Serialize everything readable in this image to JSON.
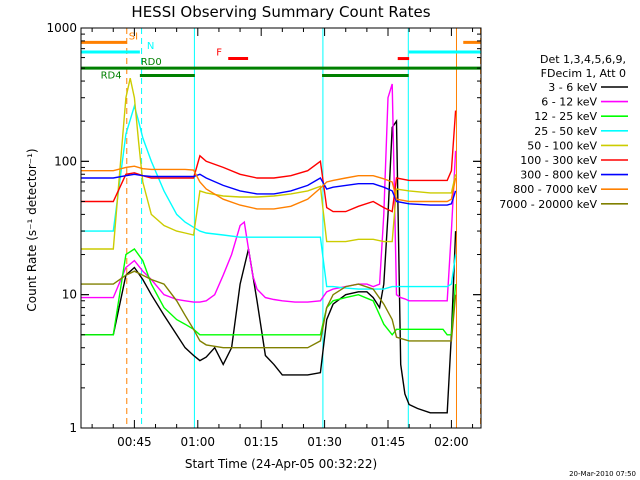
{
  "chart_data": {
    "type": "line",
    "title": "HESSI Observing Summary Count Rates",
    "xlabel": "Start Time (24-Apr-05 00:32:22)",
    "ylabel": "Count Rate (s⁻¹ detector⁻¹)",
    "y_scale": "log",
    "ylim": [
      1,
      1000
    ],
    "xlim": [
      32.37,
      127.0
    ],
    "x_unit": "minutes after 00:00 UT, 24-Apr-05",
    "x_ticks": [
      {
        "value": 45,
        "label": "00:45"
      },
      {
        "value": 60,
        "label": "01:00"
      },
      {
        "value": 75,
        "label": "01:15"
      },
      {
        "value": 90,
        "label": "01:30"
      },
      {
        "value": 105,
        "label": "01:45"
      },
      {
        "value": 120,
        "label": "02:00"
      }
    ],
    "y_ticks": [
      {
        "value": 1,
        "label": "1"
      },
      {
        "value": 10,
        "label": "10"
      },
      {
        "value": 100,
        "label": "100"
      },
      {
        "value": 1000,
        "label": "1000"
      }
    ],
    "legend_header": [
      "Det 1,3,4,5,6,9,",
      "FDecim 1, Att 0"
    ],
    "legend_position": "right",
    "footer_date": "20-Mar-2010 07:50",
    "series": [
      {
        "name": "3 - 6 keV",
        "color": "#000000",
        "x": [
          32.4,
          40,
          43,
          45,
          47,
          49,
          52,
          55,
          57,
          59,
          60.5,
          62,
          64,
          66,
          68,
          70,
          72,
          74,
          76,
          78,
          80,
          83,
          86,
          89,
          90.5,
          92,
          95,
          98,
          100,
          101.5,
          103,
          104,
          105,
          106,
          107,
          108,
          109,
          110,
          112,
          115,
          118,
          119,
          120,
          121
        ],
        "y": [
          5,
          5,
          14,
          16,
          13,
          10,
          7,
          5,
          4,
          3.5,
          3.2,
          3.4,
          4,
          3,
          4,
          12,
          22,
          9,
          3.5,
          3,
          2.5,
          2.5,
          2.5,
          2.6,
          6.5,
          8.5,
          10,
          10.5,
          10.5,
          9.5,
          8,
          12,
          40,
          180,
          200,
          3,
          1.8,
          1.5,
          1.4,
          1.3,
          1.3,
          1.3,
          5,
          30
        ]
      },
      {
        "name": "6 - 12 keV",
        "color": "#ff00ff",
        "x": [
          32.4,
          40,
          43,
          45,
          47,
          49,
          52,
          55,
          57,
          59,
          60.5,
          62,
          64,
          66,
          68,
          70,
          71,
          72,
          73,
          74,
          76,
          78,
          80,
          83,
          86,
          89,
          90.5,
          92,
          95,
          98,
          100,
          101.5,
          103,
          104,
          105,
          106,
          107,
          108,
          109,
          110,
          112,
          115,
          118,
          119,
          120,
          121
        ],
        "y": [
          9.5,
          9.5,
          16,
          18,
          15,
          13,
          10,
          9.2,
          9,
          8.8,
          8.8,
          9,
          10,
          14,
          20,
          33,
          35,
          22,
          14,
          11,
          9.5,
          9.2,
          9,
          8.8,
          8.8,
          9,
          10.5,
          11,
          11.5,
          12,
          12,
          11.5,
          12,
          40,
          300,
          380,
          10,
          9.5,
          9.3,
          9,
          9,
          9,
          9,
          9,
          30,
          120
        ]
      },
      {
        "name": "12 - 25 keV",
        "color": "#00ff00",
        "x": [
          32.4,
          40,
          43,
          45,
          47,
          49,
          52,
          55,
          57,
          59,
          60.5,
          62,
          66,
          70,
          74,
          78,
          82,
          86,
          89,
          90.5,
          92,
          95,
          98,
          101.5,
          104,
          106,
          107,
          110,
          115,
          118,
          119,
          120,
          121
        ],
        "y": [
          5,
          5,
          20,
          22,
          18,
          12,
          8,
          6.5,
          6,
          5.5,
          5,
          5,
          5,
          5,
          5,
          5,
          5,
          5,
          5,
          8,
          9,
          9.5,
          10,
          9,
          6,
          5,
          5.5,
          5.5,
          5.5,
          5.5,
          5,
          5,
          12
        ]
      },
      {
        "name": "25 - 50 keV",
        "color": "#00ffff",
        "x": [
          32.4,
          40,
          43,
          45,
          46,
          47,
          49,
          52,
          55,
          57,
          59,
          60.5,
          62,
          66,
          70,
          74,
          78,
          82,
          86,
          89,
          90.5,
          92,
          95,
          98,
          101.5,
          104,
          106,
          107,
          110,
          115,
          118,
          119,
          120,
          121
        ],
        "y": [
          30,
          30,
          160,
          260,
          200,
          150,
          100,
          60,
          40,
          35,
          32,
          30,
          29,
          28,
          27,
          27,
          27,
          27,
          27,
          27,
          11.5,
          11.5,
          11.2,
          11,
          11,
          11,
          11.5,
          11.5,
          11.5,
          11.5,
          11.5,
          11.5,
          12,
          20
        ]
      },
      {
        "name": "50 - 100 keV",
        "color": "#cccc00",
        "x": [
          32.4,
          40,
          43,
          44,
          45,
          46,
          47,
          49,
          52,
          55,
          57,
          59,
          60.5,
          62,
          66,
          70,
          74,
          78,
          82,
          86,
          89,
          90.5,
          92,
          95,
          98,
          101.5,
          104,
          106,
          107,
          110,
          115,
          118,
          119,
          120,
          121
        ],
        "y": [
          22,
          22,
          300,
          420,
          300,
          140,
          70,
          40,
          33,
          30,
          29,
          28,
          60,
          58,
          55,
          54,
          54,
          55,
          57,
          60,
          65,
          25,
          25,
          25,
          26,
          26,
          25,
          25,
          62,
          60,
          58,
          58,
          58,
          58,
          80
        ]
      },
      {
        "name": "100 - 300 keV",
        "color": "#ff0000",
        "x": [
          32.4,
          40,
          43,
          45,
          47,
          49,
          52,
          55,
          57,
          59,
          60.5,
          62,
          66,
          70,
          74,
          78,
          82,
          86,
          89,
          90.5,
          92,
          95,
          98,
          101.5,
          104,
          106,
          107,
          110,
          115,
          118,
          119,
          120,
          121
        ],
        "y": [
          50,
          50,
          80,
          82,
          78,
          75,
          75,
          75,
          75,
          75,
          110,
          100,
          90,
          80,
          75,
          75,
          78,
          85,
          100,
          45,
          42,
          42,
          46,
          50,
          45,
          42,
          75,
          72,
          72,
          72,
          72,
          85,
          240
        ]
      },
      {
        "name": "300 - 800 keV",
        "color": "#0000ff",
        "x": [
          32.4,
          40,
          43,
          45,
          47,
          49,
          52,
          55,
          57,
          59,
          60.5,
          62,
          66,
          70,
          74,
          78,
          82,
          86,
          89,
          90.5,
          92,
          95,
          98,
          101.5,
          104,
          106,
          107,
          110,
          115,
          118,
          119,
          120,
          121
        ],
        "y": [
          75,
          75,
          78,
          80,
          78,
          77,
          77,
          77,
          77,
          77,
          80,
          75,
          66,
          60,
          57,
          57,
          60,
          66,
          75,
          62,
          64,
          66,
          68,
          68,
          64,
          60,
          50,
          48,
          47,
          47,
          47,
          48,
          60
        ]
      },
      {
        "name": "800 - 7000 keV",
        "color": "#ff8000",
        "x": [
          32.4,
          40,
          43,
          45,
          47,
          49,
          52,
          55,
          57,
          59,
          60.5,
          62,
          66,
          70,
          74,
          78,
          82,
          86,
          89,
          90.5,
          92,
          95,
          98,
          101.5,
          104,
          106,
          107,
          110,
          115,
          118,
          119,
          120,
          121
        ],
        "y": [
          85,
          85,
          90,
          92,
          88,
          87,
          87,
          87,
          87,
          86,
          70,
          62,
          52,
          47,
          44,
          44,
          46,
          52,
          63,
          70,
          72,
          75,
          78,
          78,
          74,
          70,
          52,
          50,
          50,
          50,
          50,
          52,
          75
        ]
      },
      {
        "name": "7000 - 20000 keV",
        "color": "#808000",
        "x": [
          32.4,
          40,
          43,
          45,
          47,
          49,
          52,
          55,
          57,
          59,
          60.5,
          62,
          66,
          70,
          74,
          78,
          82,
          86,
          89,
          90.5,
          92,
          95,
          98,
          101.5,
          104,
          106,
          107,
          110,
          115,
          118,
          119,
          120,
          121
        ],
        "y": [
          12,
          12,
          14,
          15,
          14,
          13,
          12,
          9,
          7,
          5.5,
          4.5,
          4.2,
          4,
          4,
          4,
          4,
          4,
          4,
          4.5,
          8,
          10,
          11.5,
          12,
          11,
          8.5,
          6.5,
          4.8,
          4.5,
          4.5,
          4.5,
          4.5,
          4.5,
          10
        ]
      }
    ],
    "flags": [
      {
        "label": "SI",
        "color": "#ff8000",
        "y": 780,
        "segments": [
          [
            32.4,
            43.2
          ],
          [
            122.8,
            127.0
          ]
        ]
      },
      {
        "label": "N",
        "color": "#00ffff",
        "y": 660,
        "segments": [
          [
            32.4,
            46.3
          ],
          [
            109.9,
            127.0
          ]
        ]
      },
      {
        "label": "F",
        "color": "#ff0000",
        "y": 590,
        "segments": [
          [
            67.2,
            71.9
          ],
          [
            107.3,
            110.0
          ]
        ]
      },
      {
        "label": "RD0",
        "color": "#008000",
        "y": 500,
        "segments": [
          [
            32.4,
            127.0
          ]
        ]
      },
      {
        "label": "RD4",
        "color": "#008000",
        "y": 440,
        "segments": [
          [
            46.3,
            59.3
          ],
          [
            89.4,
            109.9
          ]
        ]
      }
    ],
    "vlines": [
      {
        "x": 43.2,
        "color": "#ff8000",
        "style": "dashed"
      },
      {
        "x": 46.7,
        "color": "#00ffff",
        "style": "dashed"
      },
      {
        "x": 59.2,
        "color": "#00ffff",
        "style": "solid"
      },
      {
        "x": 89.6,
        "color": "#00ffff",
        "style": "solid"
      },
      {
        "x": 109.8,
        "color": "#00ffff",
        "style": "solid"
      },
      {
        "x": 121.2,
        "color": "#ff8000",
        "style": "solid"
      },
      {
        "x": 126.9,
        "color": "#ff8000",
        "style": "dashed"
      }
    ]
  }
}
